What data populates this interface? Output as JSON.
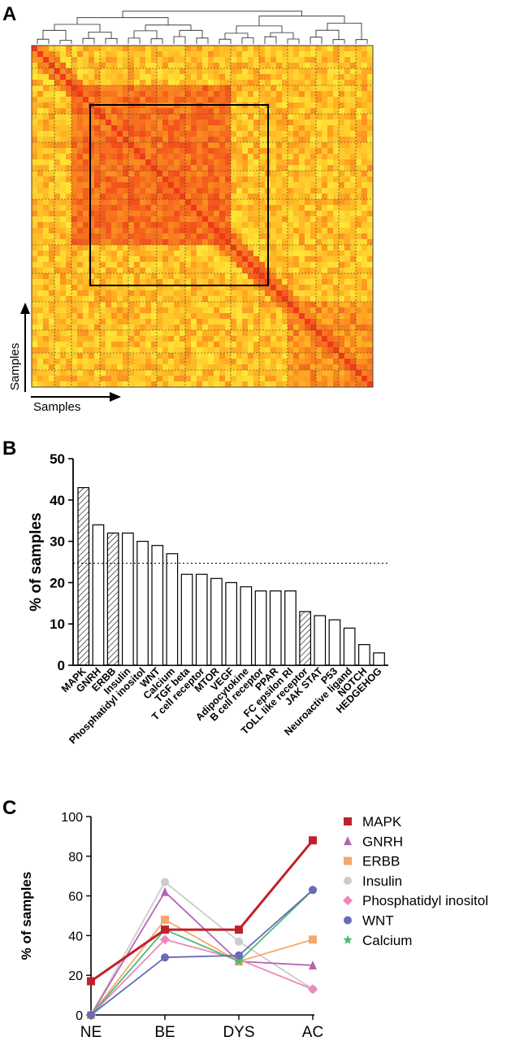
{
  "panels": {
    "a": {
      "letter": "A"
    },
    "b": {
      "letter": "B"
    },
    "c": {
      "letter": "C"
    }
  },
  "chart_data": [
    {
      "type": "heatmap",
      "xlabel": "Samples",
      "ylabel": "Samples",
      "dendrogram": true,
      "highlighted_cluster": "boxed block of co-clustered samples",
      "colors": {
        "low": "#fff23a",
        "mid": "#ffae22",
        "high": "#ee3a1a"
      }
    },
    {
      "type": "bar",
      "ylabel": "% of samples",
      "ylim": [
        0,
        50
      ],
      "yticks": [
        0,
        10,
        20,
        30,
        40,
        50
      ],
      "threshold": 24.7,
      "categories": [
        "MAPK",
        "GNRH",
        "ERBB",
        "Insulin",
        "Phosphatidyl inositol",
        "WNT",
        "Calcium",
        "TGF beta",
        "T cell receptor",
        "MTOR",
        "VEGF",
        "Adipocytokine",
        "B cell receptor",
        "PPAR",
        "FC epsilon RI",
        "TOLL like receptor",
        "JAK STAT",
        "P53",
        "Neuroactive ligand",
        "NOTCH",
        "HEDGEHOG"
      ],
      "values": [
        43,
        34,
        32,
        32,
        30,
        29,
        27,
        22,
        22,
        21,
        20,
        19,
        18,
        18,
        18,
        13,
        12,
        11,
        9,
        5,
        3
      ],
      "hatched": [
        true,
        false,
        true,
        false,
        false,
        false,
        false,
        false,
        false,
        false,
        false,
        false,
        false,
        false,
        false,
        true,
        false,
        false,
        false,
        false,
        false
      ]
    },
    {
      "type": "line",
      "ylabel": "% of samples",
      "ylim": [
        0,
        100
      ],
      "yticks": [
        0,
        20,
        40,
        60,
        80,
        100
      ],
      "categories": [
        "NE",
        "BE",
        "DYS",
        "AC"
      ],
      "legend_position": "right",
      "series": [
        {
          "name": "MAPK",
          "values": [
            17,
            43,
            43,
            88
          ],
          "color": "#c0202a",
          "marker": "square"
        },
        {
          "name": "GNRH",
          "values": [
            0,
            62,
            27,
            25
          ],
          "color": "#b565b5",
          "marker": "triangle"
        },
        {
          "name": "ERBB",
          "values": [
            0,
            48,
            27,
            38
          ],
          "color": "#f5a96a",
          "marker": "square"
        },
        {
          "name": "Insulin",
          "values": [
            0,
            67,
            37,
            13
          ],
          "color": "#cccccc",
          "marker": "circle"
        },
        {
          "name": "Phosphatidyl inositol",
          "values": [
            0,
            38,
            28,
            13
          ],
          "color": "#ee88bb",
          "marker": "diamond"
        },
        {
          "name": "WNT",
          "values": [
            0,
            29,
            30,
            63
          ],
          "color": "#6a6ab8",
          "marker": "circle"
        },
        {
          "name": "Calcium",
          "values": [
            0,
            43,
            27,
            63
          ],
          "color": "#4cbb78",
          "marker": "star"
        }
      ]
    }
  ]
}
